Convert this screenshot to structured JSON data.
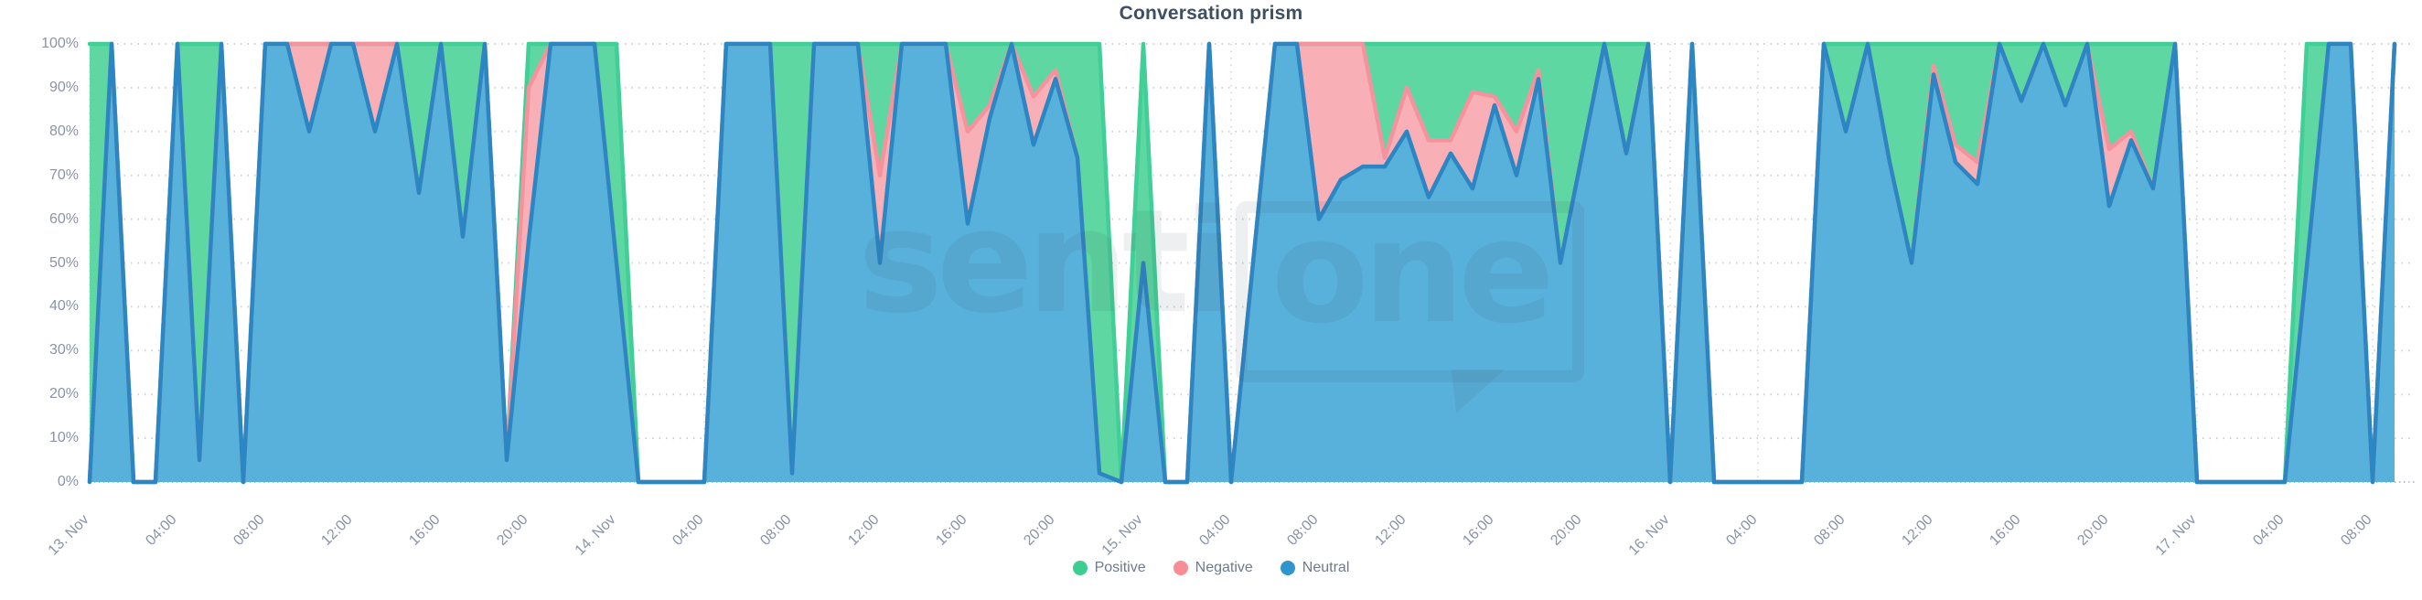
{
  "title": "Conversation prism",
  "watermark": {
    "text_plain": "senti",
    "text_boxed": "one"
  },
  "legend": {
    "items": [
      {
        "label": "Positive",
        "color": "#3ecd91"
      },
      {
        "label": "Negative",
        "color": "#f98d95"
      },
      {
        "label": "Neutral",
        "color": "#3095cc"
      }
    ]
  },
  "y_axis": {
    "tick_labels": [
      "0%",
      "10%",
      "20%",
      "30%",
      "40%",
      "50%",
      "60%",
      "70%",
      "80%",
      "90%",
      "100%"
    ]
  },
  "x_axis": {
    "rotation_deg": -45
  },
  "chart_data": {
    "type": "area",
    "stacking": "percent",
    "title": "Conversation prism",
    "x_unit": "hour",
    "x_start_label": "13. Nov",
    "n_points": 106,
    "ylim": [
      0,
      100
    ],
    "grid": "dotted",
    "legend_position": "bottom-center",
    "ticks": [
      {
        "hour": 0,
        "label": "13. Nov"
      },
      {
        "hour": 4,
        "label": "04:00"
      },
      {
        "hour": 8,
        "label": "08:00"
      },
      {
        "hour": 12,
        "label": "12:00"
      },
      {
        "hour": 16,
        "label": "16:00"
      },
      {
        "hour": 20,
        "label": "20:00"
      },
      {
        "hour": 24,
        "label": "14. Nov"
      },
      {
        "hour": 28,
        "label": "04:00"
      },
      {
        "hour": 32,
        "label": "08:00"
      },
      {
        "hour": 36,
        "label": "12:00"
      },
      {
        "hour": 40,
        "label": "16:00"
      },
      {
        "hour": 44,
        "label": "20:00"
      },
      {
        "hour": 48,
        "label": "15. Nov"
      },
      {
        "hour": 52,
        "label": "04:00"
      },
      {
        "hour": 56,
        "label": "08:00"
      },
      {
        "hour": 60,
        "label": "12:00"
      },
      {
        "hour": 64,
        "label": "16:00"
      },
      {
        "hour": 68,
        "label": "20:00"
      },
      {
        "hour": 72,
        "label": "16. Nov"
      },
      {
        "hour": 76,
        "label": "04:00"
      },
      {
        "hour": 80,
        "label": "08:00"
      },
      {
        "hour": 84,
        "label": "12:00"
      },
      {
        "hour": 88,
        "label": "16:00"
      },
      {
        "hour": 92,
        "label": "20:00"
      },
      {
        "hour": 96,
        "label": "17. Nov"
      },
      {
        "hour": 100,
        "label": "04:00"
      },
      {
        "hour": 104,
        "label": "08:00"
      }
    ],
    "series": [
      {
        "name": "Positive",
        "stack_order": "top",
        "fill": "#5ed7a3",
        "line": "#3fcf97",
        "values": [
          100,
          0,
          0,
          0,
          0,
          95,
          0,
          0,
          0,
          0,
          0,
          0,
          0,
          0,
          0,
          34,
          0,
          44,
          0,
          0,
          10,
          0,
          0,
          0,
          50,
          0,
          0,
          0,
          0,
          0,
          0,
          0,
          98,
          0,
          0,
          0,
          30,
          0,
          0,
          0,
          20,
          14,
          0,
          12,
          6,
          26,
          98,
          0,
          50,
          0,
          0,
          0,
          0,
          0,
          0,
          0,
          0,
          0,
          0,
          26,
          10,
          22,
          22,
          11,
          12,
          20,
          6,
          50,
          25,
          0,
          25,
          0,
          0,
          0,
          0,
          0,
          0,
          0,
          0,
          0,
          20,
          0,
          27,
          50,
          5,
          23,
          27,
          0,
          13,
          0,
          14,
          0,
          24,
          20,
          33,
          0,
          0,
          0,
          0,
          0,
          0,
          51,
          0,
          0,
          0,
          0
        ]
      },
      {
        "name": "Negative",
        "stack_order": "middle",
        "fill": "#f9afb6",
        "line": "#f5929d",
        "values": [
          0,
          0,
          0,
          0,
          0,
          0,
          0,
          0,
          0,
          0,
          20,
          0,
          0,
          20,
          0,
          0,
          0,
          0,
          0,
          0,
          35,
          0,
          0,
          0,
          0,
          0,
          0,
          0,
          0,
          0,
          0,
          0,
          0,
          0,
          0,
          0,
          20,
          0,
          0,
          0,
          21,
          3,
          0,
          11,
          2,
          0,
          0,
          0,
          0,
          0,
          0,
          0,
          0,
          0,
          0,
          0,
          40,
          31,
          28,
          2,
          10,
          13,
          3,
          22,
          2,
          10,
          2,
          0,
          0,
          0,
          0,
          0,
          0,
          0,
          0,
          0,
          0,
          0,
          0,
          0,
          0,
          0,
          0,
          0,
          2,
          4,
          5,
          0,
          0,
          0,
          0,
          0,
          13,
          2,
          0,
          0,
          0,
          0,
          0,
          0,
          0,
          0,
          0,
          0,
          0,
          0
        ]
      },
      {
        "name": "Neutral",
        "stack_order": "bottom",
        "fill": "#58b1db",
        "line": "#2c86c3",
        "values": [
          0,
          100,
          0,
          0,
          100,
          5,
          100,
          0,
          100,
          100,
          80,
          100,
          100,
          80,
          100,
          66,
          100,
          56,
          100,
          5,
          55,
          100,
          100,
          100,
          50,
          0,
          0,
          0,
          0,
          100,
          100,
          100,
          2,
          100,
          100,
          100,
          50,
          100,
          100,
          100,
          59,
          83,
          100,
          77,
          92,
          74,
          2,
          0,
          50,
          0,
          0,
          100,
          0,
          50,
          100,
          100,
          60,
          69,
          72,
          72,
          80,
          65,
          75,
          67,
          86,
          70,
          92,
          50,
          75,
          100,
          75,
          100,
          0,
          100,
          0,
          0,
          0,
          0,
          0,
          100,
          80,
          100,
          73,
          50,
          93,
          73,
          68,
          100,
          87,
          100,
          86,
          100,
          63,
          78,
          67,
          100,
          0,
          0,
          0,
          0,
          0,
          49,
          100,
          100,
          0,
          100
        ]
      }
    ]
  }
}
